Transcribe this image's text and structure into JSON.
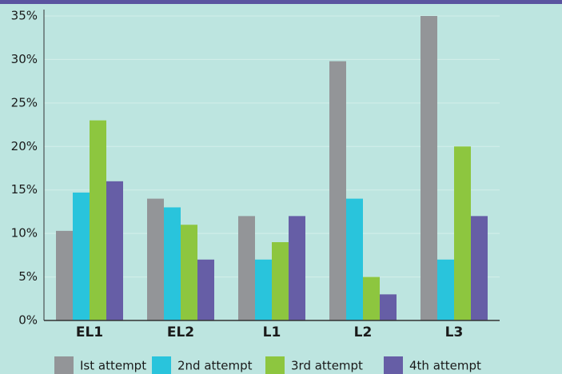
{
  "chart_data": {
    "type": "bar",
    "categories": [
      "EL1",
      "EL2",
      "L1",
      "L2",
      "L3"
    ],
    "series": [
      {
        "name": "Ist attempt",
        "color": "#939598",
        "values": [
          10.3,
          14,
          12,
          29.8,
          35
        ]
      },
      {
        "name": "2nd attempt",
        "color": "#29c4dc",
        "values": [
          14.7,
          13,
          7,
          14,
          7
        ]
      },
      {
        "name": "3rd attempt",
        "color": "#8dc63f",
        "values": [
          23,
          11,
          9,
          5,
          20
        ]
      },
      {
        "name": "4th attempt",
        "color": "#665ea6",
        "values": [
          16,
          7,
          12,
          3,
          12
        ]
      }
    ],
    "ylim": [
      0,
      35
    ],
    "yticks": [
      {
        "value": 0,
        "label": "0%"
      },
      {
        "value": 5,
        "label": "5%"
      },
      {
        "value": 10,
        "label": "10%"
      },
      {
        "value": 15,
        "label": "15%"
      },
      {
        "value": 20,
        "label": "20%"
      },
      {
        "value": 25,
        "label": "25%"
      },
      {
        "value": 30,
        "label": "30%"
      },
      {
        "value": 35,
        "label": "35%"
      }
    ],
    "grid": true
  }
}
